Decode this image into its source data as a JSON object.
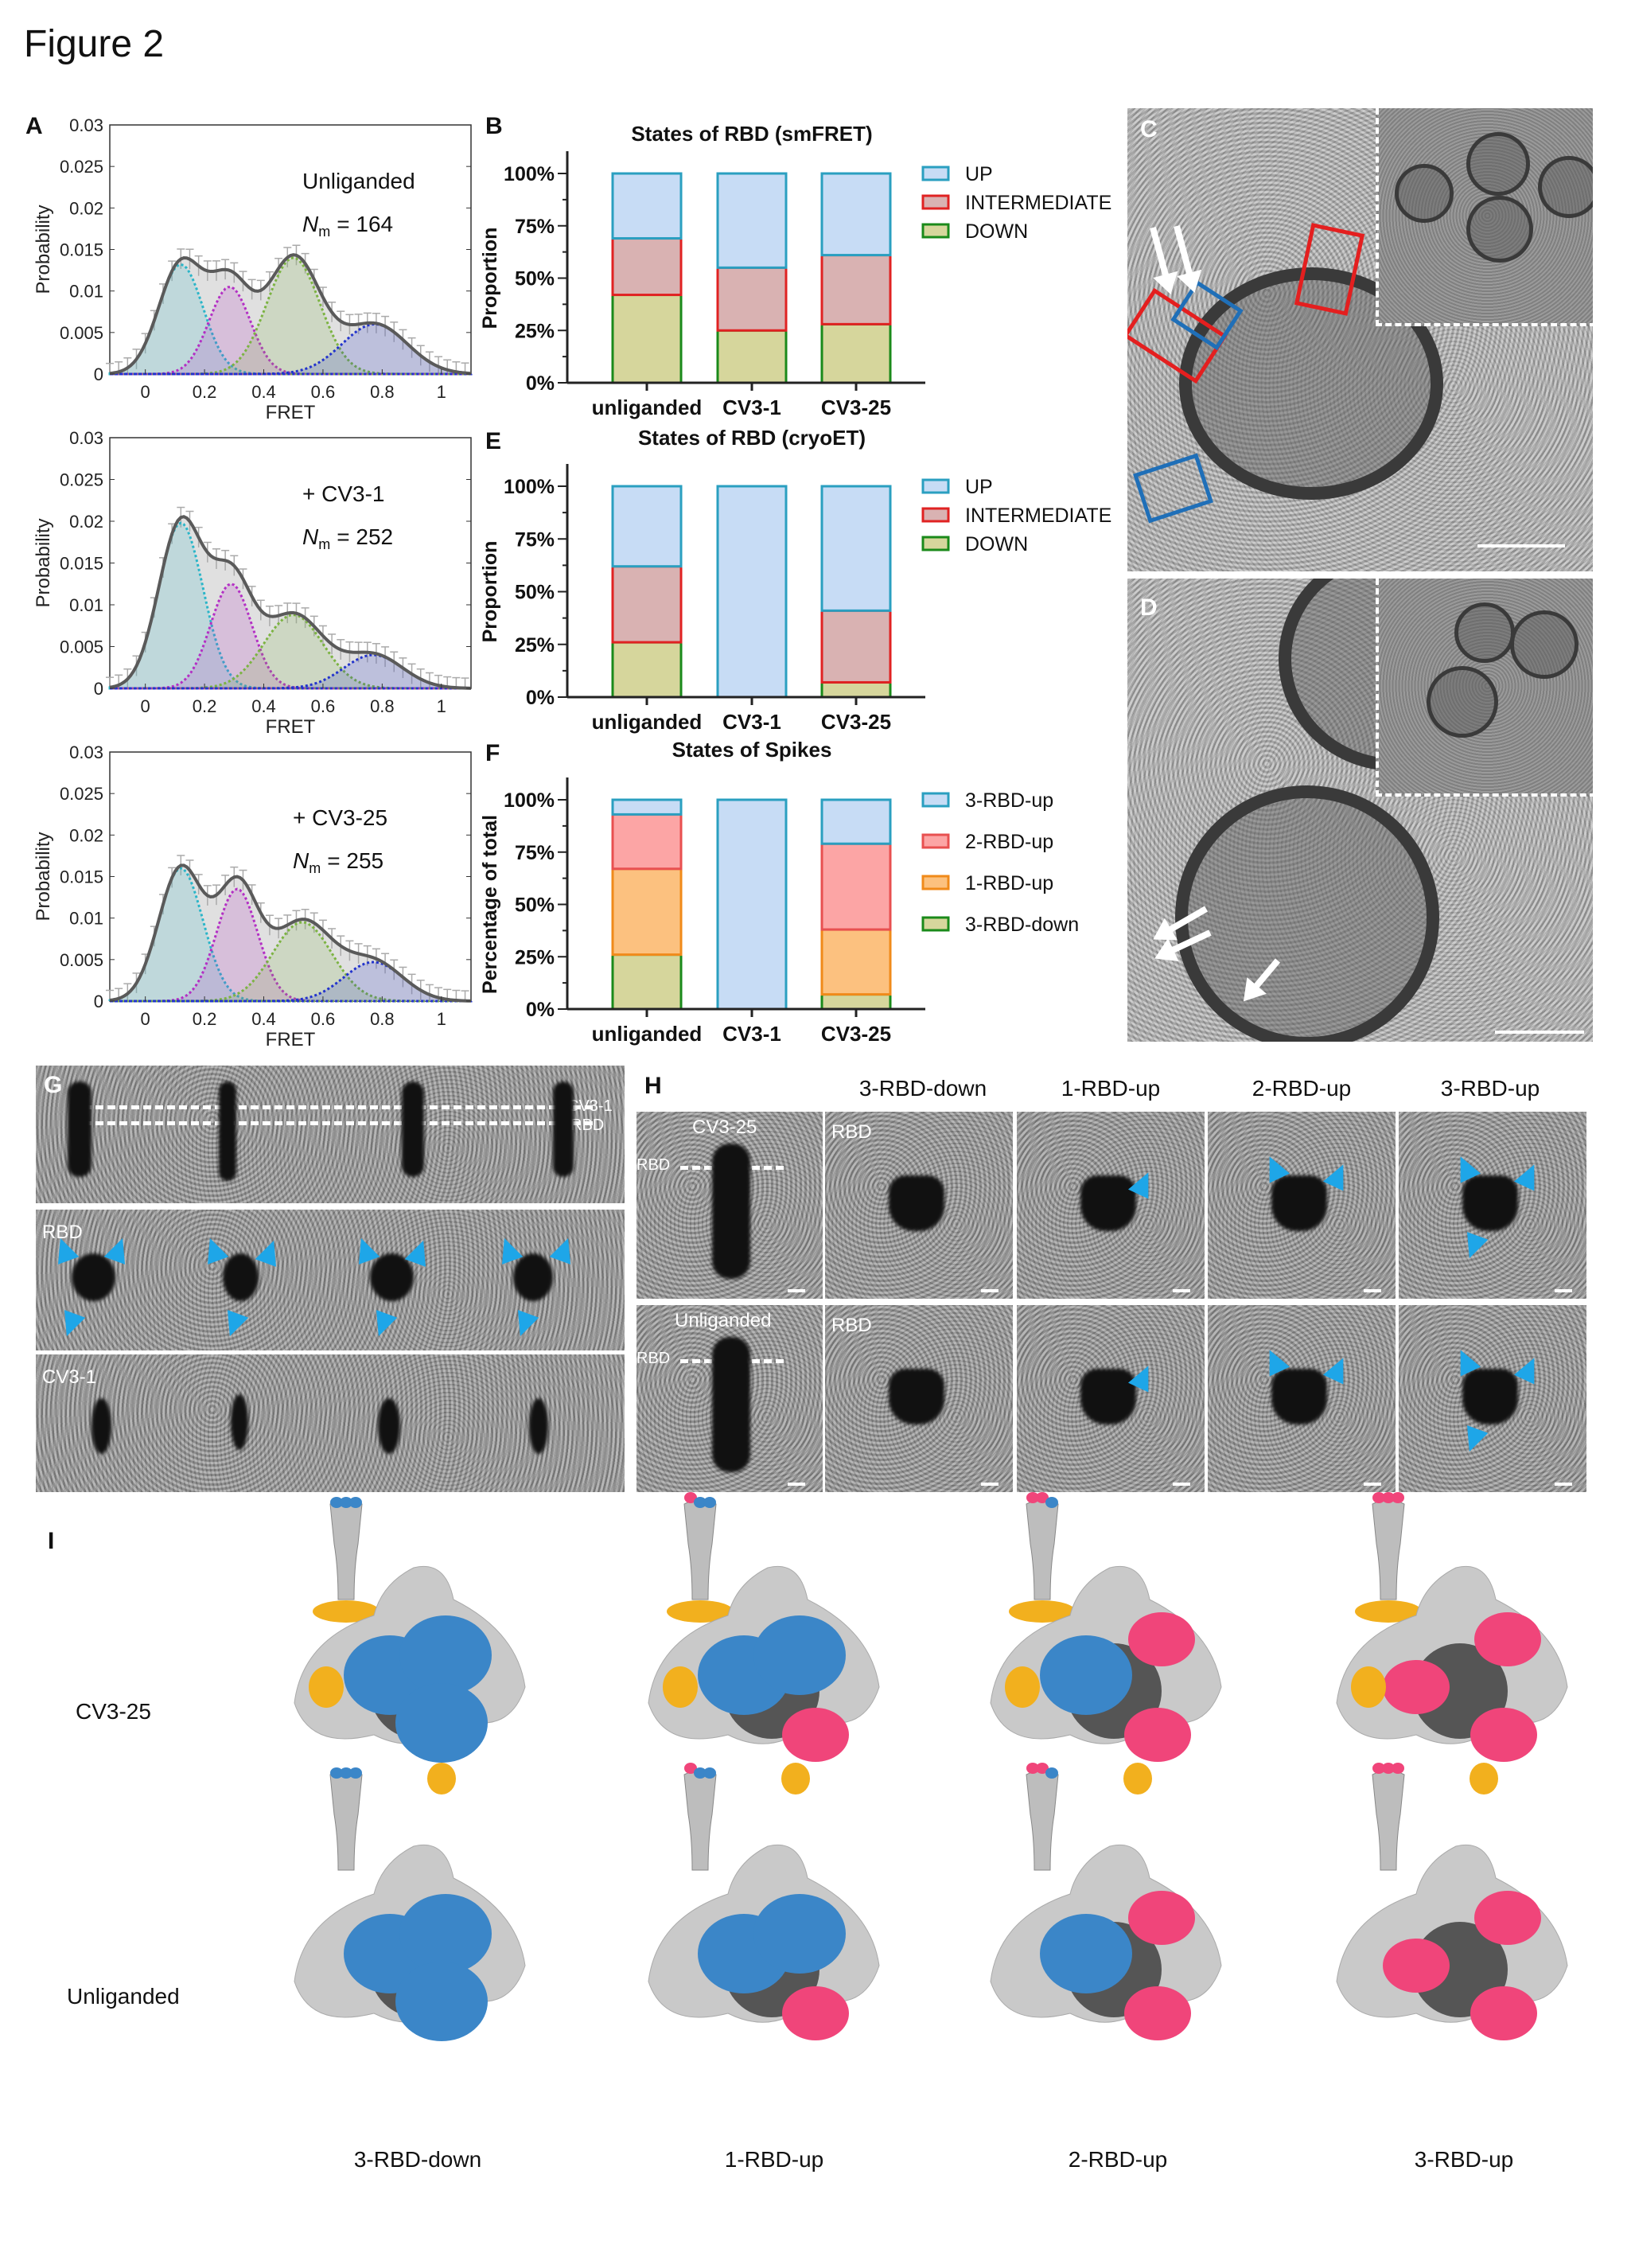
{
  "figure_title": "Figure 2",
  "panel_letters": {
    "A": "A",
    "B": "B",
    "C": "C",
    "D": "D",
    "E": "E",
    "F": "F",
    "G": "G",
    "H": "H",
    "I": "I"
  },
  "colors": {
    "up_fill": "#c7dcf5",
    "up_stroke": "#2a9fc0",
    "intermediate_fill": "#d9b2b2",
    "intermediate_stroke": "#e02222",
    "down_fill": "#d6d69c",
    "down_stroke": "#1a8a1a",
    "two_up_fill": "#fca5a5",
    "two_up_stroke": "#e85050",
    "one_up_fill": "#fcc17f",
    "one_up_stroke": "#f08a1a",
    "rbd_down_color": "#3b86c8",
    "rbd_up_color": "#f0457a",
    "fab_color": "#f2b01e",
    "arrowhead": "#1ea6e8",
    "box_red": "#e41f1f",
    "box_blue": "#1f6fb8"
  },
  "chart_data": [
    {
      "id": "A1",
      "type": "area",
      "title": "",
      "xlabel": "FRET",
      "ylabel": "Probability",
      "xlim": [
        -0.12,
        1.1
      ],
      "ylim": [
        0,
        0.03
      ],
      "xticks": [
        "0",
        "0.2",
        "0.4",
        "0.6",
        "0.8",
        "1"
      ],
      "yticks": [
        "0",
        "0.005",
        "0.01",
        "0.015",
        "0.02",
        "0.025",
        "0.03"
      ],
      "annotation": {
        "label": "Unliganded",
        "nm_symbol": "N",
        "nm_sub": "m",
        "nm_value": "= 164"
      },
      "components": [
        {
          "mean": 0.12,
          "peak": 0.0132,
          "sigma": 0.075,
          "color": "#2ab5c8"
        },
        {
          "mean": 0.285,
          "peak": 0.0105,
          "sigma": 0.07,
          "color": "#b32fc4"
        },
        {
          "mean": 0.5,
          "peak": 0.014,
          "sigma": 0.09,
          "color": "#7cb342"
        },
        {
          "mean": 0.775,
          "peak": 0.006,
          "sigma": 0.11,
          "color": "#2233cc"
        }
      ]
    },
    {
      "id": "A2",
      "type": "area",
      "title": "",
      "xlabel": "FRET",
      "ylabel": "Probability",
      "xlim": [
        -0.12,
        1.1
      ],
      "ylim": [
        0,
        0.03
      ],
      "xticks": [
        "0",
        "0.2",
        "0.4",
        "0.6",
        "0.8",
        "1"
      ],
      "yticks": [
        "0",
        "0.005",
        "0.01",
        "0.015",
        "0.02",
        "0.025",
        "0.03"
      ],
      "annotation": {
        "label": "+ CV3-1",
        "nm_symbol": "N",
        "nm_sub": "m",
        "nm_value": "= 252"
      },
      "components": [
        {
          "mean": 0.12,
          "peak": 0.0198,
          "sigma": 0.075,
          "color": "#2ab5c8"
        },
        {
          "mean": 0.29,
          "peak": 0.0125,
          "sigma": 0.07,
          "color": "#b32fc4"
        },
        {
          "mean": 0.5,
          "peak": 0.0088,
          "sigma": 0.1,
          "color": "#7cb342"
        },
        {
          "mean": 0.77,
          "peak": 0.004,
          "sigma": 0.1,
          "color": "#2233cc"
        }
      ]
    },
    {
      "id": "A3",
      "type": "area",
      "title": "",
      "xlabel": "FRET",
      "ylabel": "Probability",
      "xlim": [
        -0.12,
        1.1
      ],
      "ylim": [
        0,
        0.03
      ],
      "xticks": [
        "0",
        "0.2",
        "0.4",
        "0.6",
        "0.8",
        "1"
      ],
      "yticks": [
        "0",
        "0.005",
        "0.01",
        "0.015",
        "0.02",
        "0.025",
        "0.03"
      ],
      "annotation": {
        "label": "+ CV3-25",
        "nm_symbol": "N",
        "nm_sub": "m",
        "nm_value": "= 255"
      },
      "components": [
        {
          "mean": 0.12,
          "peak": 0.016,
          "sigma": 0.075,
          "color": "#2ab5c8"
        },
        {
          "mean": 0.31,
          "peak": 0.0135,
          "sigma": 0.07,
          "color": "#b32fc4"
        },
        {
          "mean": 0.53,
          "peak": 0.0095,
          "sigma": 0.1,
          "color": "#7cb342"
        },
        {
          "mean": 0.77,
          "peak": 0.0047,
          "sigma": 0.1,
          "color": "#2233cc"
        }
      ]
    },
    {
      "id": "B",
      "type": "bar",
      "stacked": true,
      "title": "States of RBD (smFRET)",
      "ylabel": "Proportion",
      "ylim": [
        0,
        100
      ],
      "yticks": [
        "0%",
        "25%",
        "50%",
        "75%",
        "100%"
      ],
      "categories": [
        "unliganded",
        "CV3-1",
        "CV3-25"
      ],
      "legend": "right",
      "series": [
        {
          "name": "DOWN",
          "values": [
            42,
            25,
            28
          ],
          "fill": "down_fill",
          "stroke": "down_stroke"
        },
        {
          "name": "INTERMEDIATE",
          "values": [
            27,
            30,
            33
          ],
          "fill": "intermediate_fill",
          "stroke": "intermediate_stroke"
        },
        {
          "name": "UP",
          "values": [
            31,
            45,
            39
          ],
          "fill": "up_fill",
          "stroke": "up_stroke"
        }
      ]
    },
    {
      "id": "E",
      "type": "bar",
      "stacked": true,
      "title": "States of RBD (cryoET)",
      "ylabel": "Proportion",
      "ylim": [
        0,
        100
      ],
      "yticks": [
        "0%",
        "25%",
        "50%",
        "75%",
        "100%"
      ],
      "categories": [
        "unliganded",
        "CV3-1",
        "CV3-25"
      ],
      "legend": "right",
      "series": [
        {
          "name": "DOWN",
          "values": [
            26,
            0,
            7
          ],
          "fill": "down_fill",
          "stroke": "down_stroke"
        },
        {
          "name": "INTERMEDIATE",
          "values": [
            36,
            0,
            34
          ],
          "fill": "intermediate_fill",
          "stroke": "intermediate_stroke"
        },
        {
          "name": "UP",
          "values": [
            38,
            100,
            59
          ],
          "fill": "up_fill",
          "stroke": "up_stroke"
        }
      ]
    },
    {
      "id": "F",
      "type": "bar",
      "stacked": true,
      "title": "States of Spikes",
      "ylabel": "Percentage of total",
      "ylim": [
        0,
        100
      ],
      "yticks": [
        "0%",
        "25%",
        "50%",
        "75%",
        "100%"
      ],
      "categories": [
        "unliganded",
        "CV3-1",
        "CV3-25"
      ],
      "legend": "right",
      "series": [
        {
          "name": "3-RBD-down",
          "values": [
            26,
            0,
            7
          ],
          "fill": "down_fill",
          "stroke": "down_stroke"
        },
        {
          "name": "1-RBD-up",
          "values": [
            41,
            0,
            31
          ],
          "fill": "one_up_fill",
          "stroke": "one_up_stroke"
        },
        {
          "name": "2-RBD-up",
          "values": [
            26,
            0,
            41
          ],
          "fill": "two_up_fill",
          "stroke": "two_up_stroke"
        },
        {
          "name": "3-RBD-up",
          "values": [
            7,
            100,
            21
          ],
          "fill": "up_fill",
          "stroke": "up_stroke"
        }
      ]
    }
  ],
  "panel_G": {
    "label_cv31_line": "CV3-1",
    "label_rbd_line": "RBD",
    "row2_label": "RBD",
    "row3_label": "CV3-1"
  },
  "panel_H": {
    "columns": [
      "3-RBD-down",
      "1-RBD-up",
      "2-RBD-up",
      "3-RBD-up"
    ],
    "rows": [
      {
        "label": "CV3-25",
        "rbd_line": "RBD",
        "rbd_label": "RBD"
      },
      {
        "label": "Unliganded",
        "rbd_line": "RBD",
        "rbd_label": "RBD"
      }
    ],
    "arrowheads_per_column": [
      0,
      1,
      2,
      3
    ]
  },
  "panel_I": {
    "rows": [
      {
        "label": "CV3-25",
        "fab": true
      },
      {
        "label": "Unliganded",
        "fab": false
      }
    ],
    "columns": [
      {
        "label": "3-RBD-down",
        "rbd_up_count": 0
      },
      {
        "label": "1-RBD-up",
        "rbd_up_count": 1
      },
      {
        "label": "2-RBD-up",
        "rbd_up_count": 2
      },
      {
        "label": "3-RBD-up",
        "rbd_up_count": 3
      }
    ]
  }
}
